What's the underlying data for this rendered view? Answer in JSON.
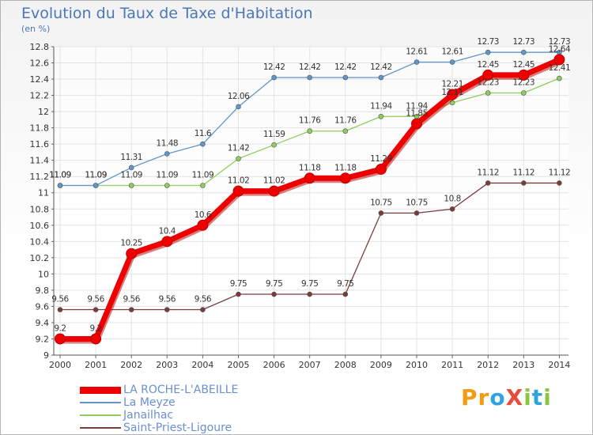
{
  "header": {
    "title": "Evolution du Taux de Taxe d'Habitation",
    "unit": "(en %)"
  },
  "brand": {
    "text": "ProXiti",
    "letters": [
      "P",
      "r",
      "o",
      "X",
      "i",
      "t",
      "i"
    ],
    "colors": [
      "#f39c12",
      "#f39c12",
      "#2ea3dd",
      "#e74c3c",
      "#8cc63f",
      "#2ea3dd",
      "#8cc63f"
    ]
  },
  "chart_data": {
    "type": "line",
    "x": [
      "2000",
      "2001",
      "2002",
      "2003",
      "2004",
      "2005",
      "2006",
      "2007",
      "2008",
      "2009",
      "2010",
      "2011",
      "2012",
      "2013",
      "2014"
    ],
    "ylim": [
      9,
      12.8
    ],
    "yticks": [
      "9",
      "9.2",
      "9.4",
      "9.6",
      "9.8",
      "10",
      "10.2",
      "10.4",
      "10.6",
      "10.8",
      "11",
      "11.2",
      "11.4",
      "11.6",
      "11.8",
      "12",
      "12.2",
      "12.4",
      "12.6",
      "12.8"
    ],
    "grid": true,
    "legend_position": "bottom-left",
    "series": [
      {
        "name": "LA ROCHE-L'ABEILLE",
        "color": "#ee0000",
        "values": [
          9.2,
          9.2,
          10.25,
          10.4,
          10.6,
          11.02,
          11.02,
          11.18,
          11.18,
          11.29,
          11.85,
          12.21,
          12.45,
          12.45,
          12.64
        ],
        "labels": [
          "9.2",
          "9.2",
          "10.25",
          "10.4",
          "10.6",
          "11.02",
          "11.02",
          "11.18",
          "11.18",
          "11.29",
          "11.85",
          "12.21",
          "12.45",
          "12.45",
          "12.64"
        ]
      },
      {
        "name": "La Meyze",
        "color": "#5f95c8",
        "values": [
          11.09,
          11.09,
          11.31,
          11.48,
          11.6,
          12.06,
          12.42,
          12.42,
          12.42,
          12.42,
          12.61,
          12.61,
          12.73,
          12.73,
          12.73
        ],
        "labels": [
          "11.09",
          "11.09",
          "11.31",
          "11.48",
          "11.6",
          "12.06",
          "12.42",
          "12.42",
          "12.42",
          "12.42",
          "12.61",
          "12.61",
          "12.73",
          "12.73",
          "12.73"
        ]
      },
      {
        "name": "Janailhac",
        "color": "#8fcd5c",
        "values": [
          11.09,
          11.09,
          11.09,
          11.09,
          11.09,
          11.42,
          11.59,
          11.76,
          11.76,
          11.94,
          11.94,
          12.11,
          12.23,
          12.23,
          12.41
        ],
        "labels": [
          "11.09",
          "11.09",
          "11.09",
          "11.09",
          "11.09",
          "11.42",
          "11.59",
          "11.76",
          "11.76",
          "11.94",
          "11.94",
          "12.11",
          "12.23",
          "12.23",
          "12.41"
        ]
      },
      {
        "name": "Saint-Priest-Ligoure",
        "color": "#7b3b3b",
        "values": [
          9.56,
          9.56,
          9.56,
          9.56,
          9.56,
          9.75,
          9.75,
          9.75,
          9.75,
          10.75,
          10.75,
          10.8,
          11.12,
          11.12,
          11.12
        ],
        "labels": [
          "9.56",
          "9.56",
          "9.56",
          "9.56",
          "9.56",
          "9.75",
          "9.75",
          "9.75",
          "9.75",
          "10.75",
          "10.75",
          "10.8",
          "11.12",
          "11.12",
          "11.12"
        ]
      }
    ]
  }
}
